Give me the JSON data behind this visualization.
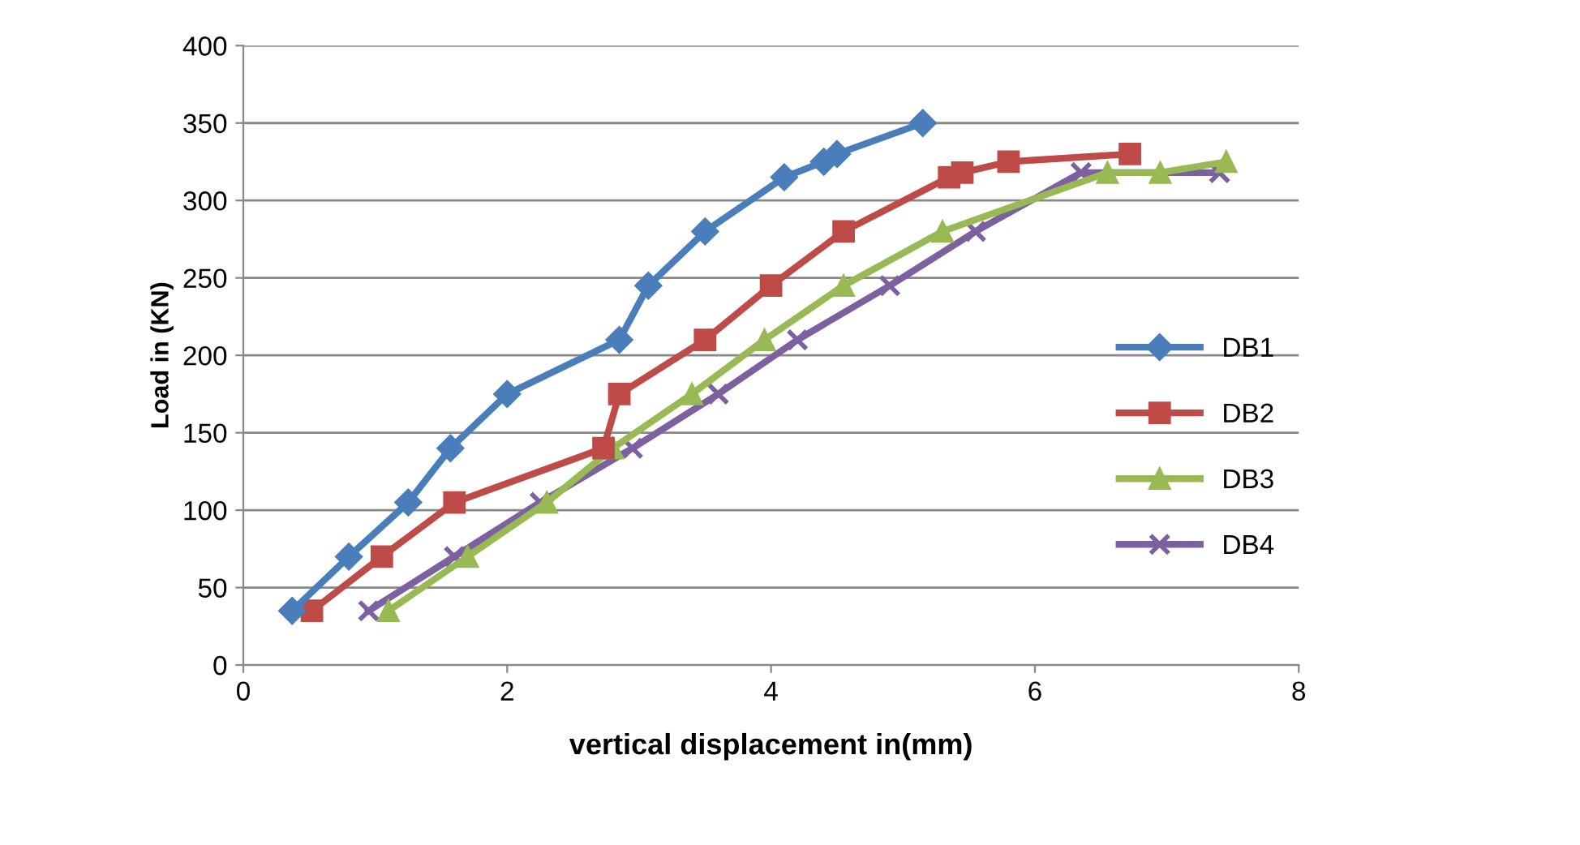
{
  "chart_data": {
    "type": "line",
    "xlabel": "vertical displacement in(mm)",
    "ylabel": "Load in (KN)",
    "xlim": [
      0,
      8
    ],
    "xticks": [
      0,
      2,
      4,
      6,
      8
    ],
    "ylim": [
      0,
      400
    ],
    "yticks": [
      0,
      50,
      100,
      150,
      200,
      250,
      300,
      350,
      400
    ],
    "grid": "y",
    "legend": "right",
    "series": [
      {
        "name": "DB1",
        "color": "#4a7ebb",
        "marker": "diamond",
        "x": [
          0.37,
          0.8,
          1.25,
          1.57,
          2.0,
          2.85,
          3.07,
          3.5,
          4.1,
          4.4,
          4.5,
          5.15
        ],
        "values": [
          35,
          70,
          105,
          140,
          175,
          210,
          245,
          280,
          315,
          325,
          330,
          350
        ]
      },
      {
        "name": "DB2",
        "color": "#be4b48",
        "marker": "square",
        "x": [
          0.52,
          1.05,
          1.6,
          2.73,
          2.85,
          3.5,
          4.0,
          4.55,
          5.35,
          5.45,
          5.8,
          6.72
        ],
        "values": [
          35,
          70,
          105,
          140,
          175,
          210,
          245,
          280,
          315,
          318,
          325,
          330
        ]
      },
      {
        "name": "DB3",
        "color": "#98b954",
        "marker": "triangle",
        "x": [
          1.1,
          1.7,
          2.3,
          2.8,
          3.4,
          3.95,
          4.55,
          5.3,
          6.55,
          6.95,
          7.45
        ],
        "values": [
          35,
          70,
          105,
          140,
          175,
          210,
          245,
          280,
          318,
          318,
          325
        ]
      },
      {
        "name": "DB4",
        "color": "#7d60a0",
        "marker": "cross",
        "x": [
          0.95,
          1.6,
          2.25,
          2.95,
          3.6,
          4.2,
          4.9,
          5.55,
          6.35,
          7.4
        ],
        "values": [
          35,
          70,
          105,
          140,
          175,
          210,
          245,
          280,
          318,
          318
        ]
      }
    ]
  }
}
